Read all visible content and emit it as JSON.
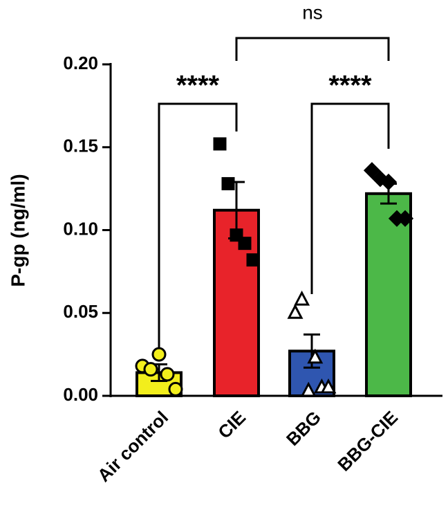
{
  "chart_data": {
    "type": "bar",
    "y_label": "P-gp (ng/ml)",
    "categories": [
      "Air control",
      "CIE",
      "BBG",
      "BBG-CIE"
    ],
    "values": [
      0.014,
      0.112,
      0.027,
      0.122
    ],
    "errors": [
      0.005,
      0.017,
      0.01,
      0.006
    ],
    "colors": [
      "#f2ee1c",
      "#e8232a",
      "#2f56b0",
      "#4cb848"
    ],
    "markers": [
      "circle",
      "square",
      "triangle",
      "diamond"
    ],
    "points": [
      [
        0.018,
        0.016,
        0.025,
        0.013,
        0.004
      ],
      [
        0.152,
        0.128,
        0.097,
        0.092,
        0.082
      ],
      [
        0.05,
        0.058,
        0.003,
        0.023,
        0.005,
        0.005
      ],
      [
        0.136,
        0.131,
        0.129,
        0.107,
        0.107
      ]
    ],
    "ylim": [
      0,
      0.2
    ],
    "yticks": [
      {
        "value": 0,
        "label": "0.00"
      },
      {
        "value": 0.05,
        "label": "0.05"
      },
      {
        "value": 0.1,
        "label": "0.10"
      },
      {
        "value": 0.15,
        "label": "0.15"
      },
      {
        "value": 0.2,
        "label": "0.20"
      }
    ],
    "comparisons": [
      {
        "groups": [
          "Air control",
          "CIE"
        ],
        "label": "****"
      },
      {
        "groups": [
          "BBG",
          "BBG-CIE"
        ],
        "label": "****"
      },
      {
        "groups": [
          "CIE",
          "BBG-CIE"
        ],
        "label": "ns"
      }
    ]
  }
}
